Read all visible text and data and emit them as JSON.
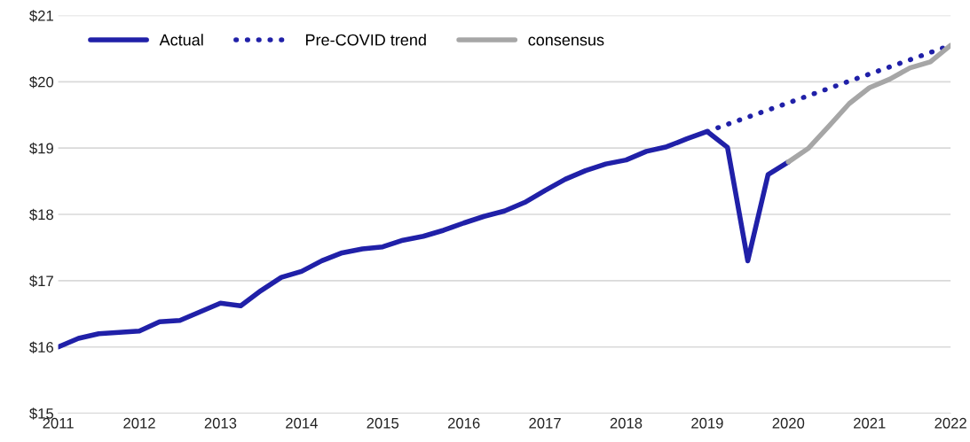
{
  "chart_data": {
    "type": "line",
    "legend": "top left",
    "grid": "y",
    "marker": "none",
    "xlim": [
      2011,
      2022
    ],
    "xticks": [
      2011,
      2012,
      2013,
      2014,
      2015,
      2016,
      2017,
      2018,
      2019,
      2020,
      2021,
      2022
    ],
    "ylim": [
      15,
      21
    ],
    "yticks": [
      {
        "value": 15,
        "label": "$15"
      },
      {
        "value": 16,
        "label": "$16"
      },
      {
        "value": 17,
        "label": "$17"
      },
      {
        "value": 18,
        "label": "$18"
      },
      {
        "value": 19,
        "label": "$19"
      },
      {
        "value": 20,
        "label": "$20"
      },
      {
        "value": 21,
        "label": "$21"
      }
    ],
    "series": [
      {
        "name": "Actual",
        "color": "#2020a8",
        "line_style": "solid",
        "x": [
          2011,
          2011.25,
          2011.5,
          2011.75,
          2012,
          2012.25,
          2012.5,
          2012.75,
          2013,
          2013.25,
          2013.5,
          2013.75,
          2014,
          2014.25,
          2014.5,
          2014.75,
          2015,
          2015.25,
          2015.5,
          2015.75,
          2016,
          2016.25,
          2016.5,
          2016.75,
          2017,
          2017.25,
          2017.5,
          2017.75,
          2018,
          2018.25,
          2018.5,
          2018.75,
          2019,
          2019.25,
          2019.5,
          2019.75,
          2020
        ],
        "values": [
          16.0,
          16.13,
          16.2,
          16.22,
          16.24,
          16.38,
          16.4,
          16.53,
          16.66,
          16.62,
          16.85,
          17.05,
          17.14,
          17.3,
          17.42,
          17.48,
          17.51,
          17.61,
          17.67,
          17.76,
          17.87,
          17.97,
          18.05,
          18.18,
          18.36,
          18.53,
          18.66,
          18.76,
          18.82,
          18.95,
          19.02,
          19.14,
          19.25,
          19.01,
          17.3,
          18.6,
          18.79
        ]
      },
      {
        "name": "Pre-COVID trend",
        "color": "#2020a8",
        "line_style": "dotted",
        "x": [
          2019,
          2022
        ],
        "values": [
          19.25,
          20.55
        ]
      },
      {
        "name": "consensus",
        "color": "#a6a6a6",
        "line_style": "solid",
        "x": [
          2020,
          2020.25,
          2020.5,
          2020.75,
          2021,
          2021.25,
          2021.5,
          2021.75,
          2022
        ],
        "values": [
          18.79,
          19.0,
          19.33,
          19.67,
          19.91,
          20.04,
          20.21,
          20.3,
          20.55
        ]
      }
    ]
  }
}
